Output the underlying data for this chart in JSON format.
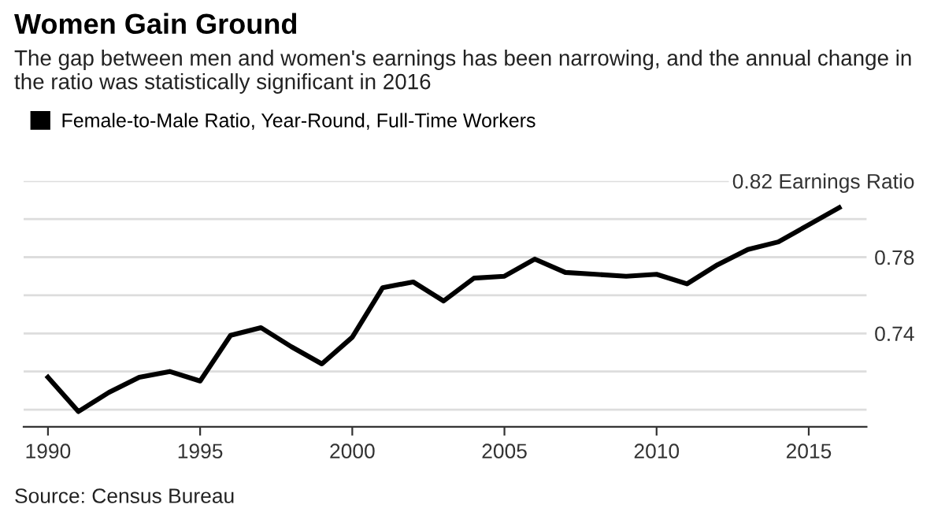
{
  "chart_data": {
    "type": "line",
    "title": "Women Gain Ground",
    "subtitle": "The gap between men and women's earnings has been narrowing, and the annual change in the ratio was statistically significant in 2016",
    "x": [
      1990,
      1991,
      1992,
      1993,
      1994,
      1995,
      1996,
      1997,
      1998,
      1999,
      2000,
      2001,
      2002,
      2003,
      2004,
      2005,
      2006,
      2007,
      2008,
      2009,
      2010,
      2011,
      2012,
      2013,
      2014,
      2015,
      2016
    ],
    "series": [
      {
        "name": "Female-to-Male Ratio, Year-Round, Full-Time Workers",
        "color": "#000000",
        "values": [
          0.717,
          0.699,
          0.709,
          0.717,
          0.72,
          0.715,
          0.739,
          0.743,
          0.733,
          0.724,
          0.738,
          0.764,
          0.767,
          0.757,
          0.769,
          0.77,
          0.779,
          0.772,
          0.771,
          0.77,
          0.771,
          0.766,
          0.776,
          0.784,
          0.788,
          0.797,
          0.806
        ]
      }
    ],
    "xlim": [
      1989.2,
      2016.9
    ],
    "xticks": [
      1990,
      1995,
      2000,
      2005,
      2010,
      2015
    ],
    "ylim": [
      0.691,
      0.82
    ],
    "yticks": [
      {
        "value": 0.7,
        "label": null
      },
      {
        "value": 0.72,
        "label": null
      },
      0.74,
      {
        "value": 0.76,
        "label": null
      },
      0.78,
      {
        "value": 0.8,
        "label": null
      },
      {
        "value": 0.82,
        "label": "0.82 Earnings Ratio"
      }
    ],
    "grid": "y",
    "legend": "top left",
    "marker": "none",
    "line_style": "solid",
    "annotations": [
      "Source: Census Bureau"
    ]
  }
}
